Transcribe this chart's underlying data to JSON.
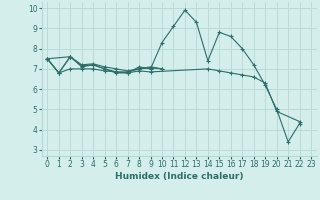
{
  "title": "",
  "xlabel": "Humidex (Indice chaleur)",
  "background_color": "#d4eeec",
  "grid_color": "#b8d8d5",
  "line_color": "#2d6e68",
  "xlim": [
    -0.5,
    23.5
  ],
  "ylim": [
    2.7,
    10.3
  ],
  "yticks": [
    3,
    4,
    5,
    6,
    7,
    8,
    9,
    10
  ],
  "xticks": [
    0,
    1,
    2,
    3,
    4,
    5,
    6,
    7,
    8,
    9,
    10,
    11,
    12,
    13,
    14,
    15,
    16,
    17,
    18,
    19,
    20,
    21,
    22,
    23
  ],
  "lines": [
    {
      "x": [
        0,
        1,
        2,
        3,
        4,
        5,
        6,
        7,
        8,
        9,
        10,
        11,
        12,
        13,
        14,
        15,
        16,
        17,
        18,
        19,
        20,
        21,
        22
      ],
      "y": [
        7.5,
        6.8,
        7.6,
        7.1,
        7.2,
        7.0,
        6.8,
        6.8,
        7.1,
        7.0,
        8.3,
        9.1,
        9.9,
        9.3,
        7.4,
        8.8,
        8.6,
        8.0,
        7.2,
        6.2,
        5.0,
        3.4,
        4.3
      ]
    },
    {
      "x": [
        0,
        2,
        3,
        4,
        5,
        6,
        7,
        8,
        9,
        10
      ],
      "y": [
        7.5,
        7.6,
        7.15,
        7.2,
        7.0,
        6.85,
        6.85,
        7.0,
        7.05,
        7.0
      ]
    },
    {
      "x": [
        0,
        1,
        2,
        3,
        4,
        5,
        6,
        7,
        8,
        9,
        10
      ],
      "y": [
        7.5,
        6.8,
        7.6,
        7.2,
        7.25,
        7.1,
        7.0,
        6.9,
        7.0,
        7.1,
        7.0
      ]
    },
    {
      "x": [
        0,
        1,
        2,
        3,
        4,
        5,
        6,
        7,
        8,
        9,
        14,
        15,
        16,
        17,
        18,
        19,
        20,
        22
      ],
      "y": [
        7.5,
        6.8,
        7.0,
        7.0,
        7.0,
        6.9,
        6.85,
        6.8,
        6.9,
        6.85,
        7.0,
        6.9,
        6.8,
        6.7,
        6.6,
        6.3,
        4.9,
        4.4
      ]
    }
  ]
}
